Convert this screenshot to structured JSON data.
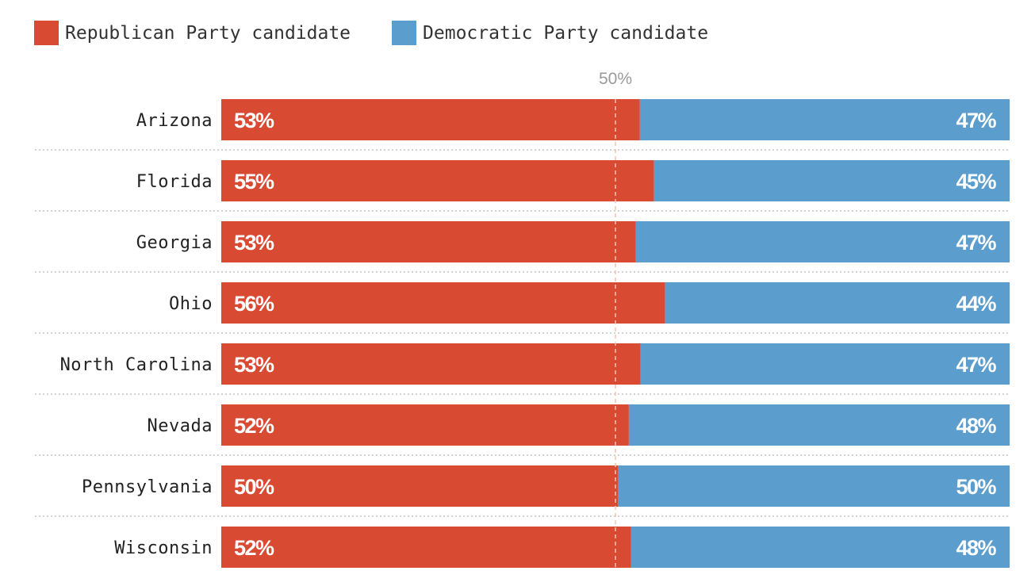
{
  "legend": [
    {
      "label": "Republican Party candidate",
      "color": "#d94a33"
    },
    {
      "label": "Democratic Party candidate",
      "color": "#5b9dcc"
    }
  ],
  "chart_data": {
    "type": "bar",
    "stacked": true,
    "orientation": "horizontal",
    "categories": [
      "Arizona",
      "Florida",
      "Georgia",
      "Ohio",
      "North Carolina",
      "Nevada",
      "Pennsylvania",
      "Wisconsin"
    ],
    "series": [
      {
        "name": "Republican Party candidate",
        "color": "#d94a33",
        "values": [
          53.1,
          54.9,
          52.6,
          56.3,
          53.2,
          51.7,
          50.3,
          52.0
        ],
        "labels": [
          "53%",
          "55%",
          "53%",
          "56%",
          "53%",
          "52%",
          "50%",
          "52%"
        ]
      },
      {
        "name": "Democratic Party candidate",
        "color": "#5b9dcc",
        "values": [
          46.9,
          45.1,
          47.4,
          43.7,
          46.8,
          48.3,
          49.7,
          48.0
        ],
        "labels": [
          "47%",
          "45%",
          "47%",
          "44%",
          "47%",
          "48%",
          "50%",
          "48%"
        ]
      }
    ],
    "xlim": [
      0,
      100
    ],
    "reference_line": {
      "value": 50,
      "label": "50%"
    },
    "legend_position": "top-left"
  }
}
